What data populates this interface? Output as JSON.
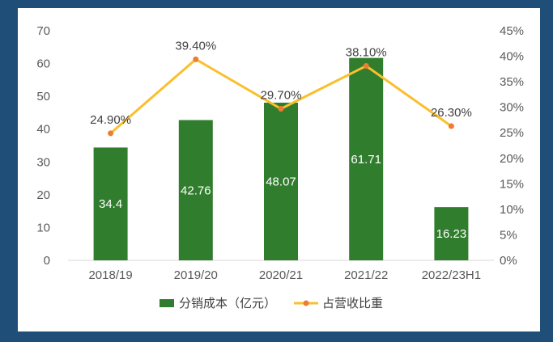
{
  "chart_data": {
    "type": "bar",
    "categories": [
      "2018/19",
      "2019/20",
      "2020/21",
      "2021/22",
      "2022/23H1"
    ],
    "series": [
      {
        "name": "分销成本（亿元）",
        "type": "bar",
        "axis": "left",
        "values": [
          34.4,
          42.76,
          48.07,
          61.71,
          16.23
        ],
        "labels": [
          "34.4",
          "42.76",
          "48.07",
          "61.71",
          "16.23"
        ],
        "color": "#317d2e"
      },
      {
        "name": "占营收比重",
        "type": "line",
        "axis": "right",
        "values": [
          24.9,
          39.4,
          29.7,
          38.1,
          26.3
        ],
        "labels": [
          "24.90%",
          "39.40%",
          "29.70%",
          "38.10%",
          "26.30%"
        ],
        "color": "#fbbf2d",
        "marker_color": "#ed7d31"
      }
    ],
    "y_left": {
      "ylim": [
        0,
        70
      ],
      "ticks": [
        "0",
        "10",
        "20",
        "30",
        "40",
        "50",
        "60",
        "70"
      ]
    },
    "y_right": {
      "ylim": [
        0,
        45
      ],
      "ticks": [
        "0%",
        "5%",
        "10%",
        "15%",
        "20%",
        "25%",
        "30%",
        "35%",
        "40%",
        "45%"
      ]
    },
    "grid": false,
    "legend_position": "bottom"
  },
  "colors": {
    "frame": "#1f4e79",
    "background": "#ffffff",
    "bar": "#317d2e",
    "line": "#fbbf2d",
    "marker": "#ed7d31"
  }
}
